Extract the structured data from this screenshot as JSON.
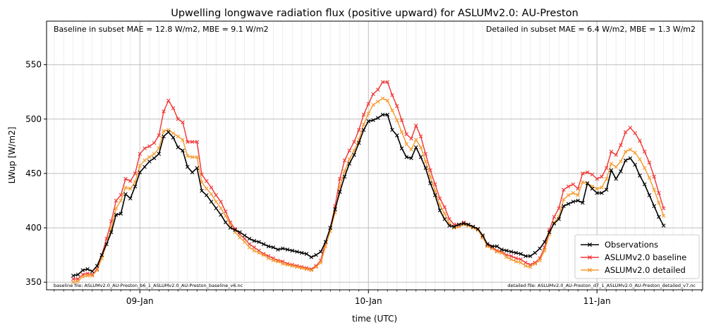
{
  "chart_data": {
    "type": "line",
    "title": "Upwelling longwave radiation flux (positive upward) for ASLUMv2.0: AU-Preston",
    "xlabel": "time (UTC)",
    "ylabel": "LWup [W/m2]",
    "x_ticks": [
      {
        "label": "09-Jan",
        "t": 24
      },
      {
        "label": "10-Jan",
        "t": 48
      },
      {
        "label": "11-Jan",
        "t": 72
      }
    ],
    "y_ticks": [
      350,
      400,
      450,
      500,
      550
    ],
    "xlim": [
      14.2,
      83.1
    ],
    "ylim": [
      343,
      590
    ],
    "grid": true,
    "legend_position": "lower-right",
    "annotations": {
      "top_left": "Baseline in subset MAE = 12.8 W/m2, MBE = 9.1 W/m2",
      "top_right": "Detailed in subset MAE = 6.4 W/m2, MBE = 1.3 W/m2",
      "bottom_left": "baseline file: ASLUMv2.0_AU-Preston_b6_1_ASLUMv2.0_AU-Preston_baseline_v6.nc",
      "bottom_right": "detailed file: ASLUMv2.0_AU-Preston_d7_1_ASLUMv2.0_AU-Preston_detailed_v7.nc"
    },
    "t_start": 17,
    "t_step": 0.5,
    "series": [
      {
        "name": "Observations",
        "color": "#000000",
        "values": [
          356,
          357,
          361,
          362,
          360,
          365,
          375,
          385,
          396,
          412,
          413,
          431,
          427,
          438,
          451,
          456,
          461,
          464,
          468,
          484,
          488,
          483,
          474,
          471,
          456,
          451,
          455,
          434,
          430,
          424,
          418,
          412,
          405,
          400,
          398,
          396,
          393,
          390,
          388,
          387,
          385,
          383,
          382,
          380,
          381,
          380,
          379,
          378,
          377,
          376,
          373,
          375,
          378,
          387,
          400,
          417,
          433,
          447,
          459,
          467,
          478,
          490,
          498,
          499,
          501,
          504,
          504,
          490,
          485,
          473,
          465,
          464,
          474,
          465,
          455,
          441,
          430,
          416,
          408,
          402,
          401,
          403,
          404,
          403,
          401,
          399,
          393,
          385,
          383,
          383,
          380,
          379,
          378,
          377,
          376,
          374,
          374,
          377,
          381,
          387,
          396,
          404,
          408,
          420,
          422,
          424,
          425,
          423,
          441,
          436,
          432,
          432,
          435,
          453,
          445,
          452,
          462,
          464,
          458,
          448,
          440,
          430,
          420,
          410,
          402
        ],
        "marker_every": 1
      },
      {
        "name": "ASLUMv2.0 baseline",
        "color": "#f03535",
        "values": [
          353,
          353,
          357,
          358,
          357,
          362,
          375,
          390,
          406,
          425,
          430,
          445,
          443,
          450,
          468,
          473,
          475,
          478,
          485,
          507,
          517,
          510,
          500,
          497,
          479,
          479,
          479,
          449,
          443,
          437,
          430,
          424,
          415,
          405,
          399,
          394,
          390,
          385,
          382,
          379,
          376,
          374,
          372,
          370,
          369,
          367,
          366,
          365,
          364,
          363,
          362,
          365,
          370,
          387,
          400,
          420,
          445,
          462,
          471,
          479,
          490,
          504,
          514,
          523,
          527,
          534,
          534,
          522,
          512,
          499,
          486,
          482,
          494,
          484,
          468,
          453,
          440,
          427,
          419,
          408,
          403,
          403,
          405,
          403,
          401,
          399,
          392,
          384,
          382,
          379,
          378,
          375,
          374,
          372,
          371,
          368,
          366,
          368,
          372,
          382,
          398,
          410,
          418,
          435,
          438,
          440,
          436,
          450,
          451,
          449,
          445,
          447,
          455,
          470,
          467,
          476,
          488,
          492,
          487,
          480,
          470,
          460,
          447,
          432,
          418
        ],
        "marker_every": 1
      },
      {
        "name": "ASLUMv2.0 detailed",
        "color": "#f59a2e",
        "values": [
          350,
          351,
          355,
          356,
          356,
          361,
          372,
          385,
          400,
          418,
          425,
          437,
          436,
          442,
          457,
          462,
          465,
          468,
          473,
          489,
          490,
          487,
          484,
          481,
          466,
          465,
          465,
          442,
          436,
          431,
          424,
          418,
          411,
          403,
          396,
          391,
          387,
          382,
          379,
          377,
          375,
          372,
          370,
          369,
          367,
          366,
          365,
          364,
          363,
          362,
          361,
          364,
          368,
          383,
          397,
          414,
          438,
          452,
          463,
          471,
          481,
          495,
          505,
          513,
          516,
          519,
          517,
          508,
          499,
          488,
          477,
          472,
          481,
          474,
          461,
          447,
          434,
          421,
          413,
          404,
          400,
          401,
          403,
          402,
          400,
          398,
          391,
          383,
          381,
          378,
          377,
          373,
          371,
          369,
          368,
          365,
          364,
          367,
          370,
          379,
          394,
          405,
          410,
          426,
          430,
          432,
          430,
          442,
          441,
          438,
          436,
          437,
          445,
          459,
          456,
          461,
          470,
          472,
          469,
          463,
          455,
          446,
          435,
          423,
          411
        ],
        "marker_every": 1
      }
    ]
  }
}
